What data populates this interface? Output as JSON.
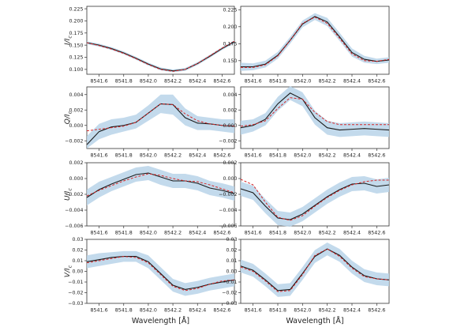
{
  "chart_data": [
    {
      "type": "line",
      "ylabel": "I/I",
      "ylabel_sub": "c",
      "xlabel": "",
      "xlim": [
        8541.5,
        8542.7
      ],
      "ylim": [
        0.09,
        0.23
      ],
      "yticks": [
        "0.100",
        "0.125",
        "0.150",
        "0.175",
        "0.200",
        "0.225"
      ],
      "xticks": [
        "8541.6",
        "8541.8",
        "8542.0",
        "8542.2",
        "8542.4",
        "8542.6"
      ],
      "x": [
        8541.5,
        8541.6,
        8541.7,
        8541.8,
        8541.9,
        8542.0,
        8542.1,
        8542.2,
        8542.3,
        8542.4,
        8542.5,
        8542.6,
        8542.7
      ],
      "series": [
        {
          "values": [
            0.155,
            0.15,
            0.143,
            0.134,
            0.123,
            0.111,
            0.101,
            0.097,
            0.1,
            0.112,
            0.127,
            0.143,
            0.157
          ]
        },
        {
          "values": [
            0.155,
            0.149,
            0.142,
            0.133,
            0.122,
            0.11,
            0.1,
            0.096,
            0.1,
            0.112,
            0.128,
            0.144,
            0.158
          ]
        }
      ],
      "band": {
        "lower": [
          0.152,
          0.147,
          0.14,
          0.131,
          0.12,
          0.108,
          0.098,
          0.094,
          0.097,
          0.109,
          0.124,
          0.14,
          0.154
        ],
        "upper": [
          0.158,
          0.153,
          0.146,
          0.137,
          0.126,
          0.114,
          0.104,
          0.1,
          0.103,
          0.115,
          0.13,
          0.146,
          0.16
        ]
      }
    },
    {
      "type": "line",
      "ylabel": "",
      "xlabel": "",
      "xlim": [
        8541.5,
        8542.7
      ],
      "ylim": [
        0.13,
        0.23
      ],
      "yticks": [
        "0.150",
        "0.175",
        "0.200",
        "0.225"
      ],
      "xticks": [
        "8541.6",
        "8541.8",
        "8542.0",
        "8542.2",
        "8542.4",
        "8542.6"
      ],
      "x": [
        8541.5,
        8541.6,
        8541.7,
        8541.8,
        8541.9,
        8542.0,
        8542.1,
        8542.2,
        8542.3,
        8542.4,
        8542.5,
        8542.6,
        8542.7
      ],
      "series": [
        {
          "values": [
            0.141,
            0.141,
            0.145,
            0.158,
            0.18,
            0.204,
            0.215,
            0.207,
            0.185,
            0.162,
            0.152,
            0.149,
            0.151
          ]
        },
        {
          "values": [
            0.14,
            0.14,
            0.144,
            0.157,
            0.18,
            0.205,
            0.214,
            0.205,
            0.183,
            0.16,
            0.15,
            0.149,
            0.152
          ]
        }
      ],
      "band": {
        "lower": [
          0.135,
          0.136,
          0.14,
          0.153,
          0.175,
          0.199,
          0.21,
          0.201,
          0.179,
          0.156,
          0.147,
          0.145,
          0.147
        ],
        "upper": [
          0.147,
          0.146,
          0.15,
          0.163,
          0.185,
          0.209,
          0.22,
          0.213,
          0.191,
          0.168,
          0.157,
          0.153,
          0.155
        ]
      }
    },
    {
      "type": "line",
      "ylabel": "Q/I",
      "ylabel_sub": "c",
      "xlabel": "",
      "xlim": [
        8541.5,
        8542.7
      ],
      "ylim": [
        -0.003,
        0.005
      ],
      "yticks": [
        "−0.002",
        "0.000",
        "0.002",
        "0.004"
      ],
      "xticks": [
        "8541.6",
        "8541.8",
        "8542.0",
        "8542.2",
        "8542.4",
        "8542.6"
      ],
      "x": [
        8541.5,
        8541.6,
        8541.7,
        8541.8,
        8541.9,
        8542.0,
        8542.1,
        8542.2,
        8542.3,
        8542.4,
        8542.5,
        8542.6,
        8542.7
      ],
      "series": [
        {
          "values": [
            -0.0025,
            -0.0008,
            -0.0002,
            0.0,
            0.0004,
            0.0016,
            0.0028,
            0.0027,
            0.001,
            0.0003,
            0.0002,
            0.0,
            -0.0001
          ]
        },
        {
          "values": [
            -0.0007,
            -0.0005,
            -0.0003,
            -0.0001,
            0.0004,
            0.0016,
            0.0028,
            0.0027,
            0.0015,
            0.0006,
            0.0002,
            0.0,
            -0.0001
          ]
        }
      ],
      "band": {
        "lower": [
          -0.003,
          -0.0018,
          -0.0012,
          -0.0008,
          -0.0004,
          0.0006,
          0.0016,
          0.0014,
          0.0,
          -0.0006,
          -0.0006,
          -0.0008,
          -0.001
        ],
        "upper": [
          -0.0014,
          0.0002,
          0.0008,
          0.001,
          0.0014,
          0.0026,
          0.004,
          0.004,
          0.0022,
          0.0012,
          0.001,
          0.0008,
          0.0008
        ]
      }
    },
    {
      "type": "line",
      "ylabel": "",
      "xlabel": "",
      "xlim": [
        8541.5,
        8542.7
      ],
      "ylim": [
        -0.003,
        0.005
      ],
      "yticks": [
        "−0.002",
        "0.000",
        "0.002",
        "0.004"
      ],
      "xticks": [
        "8541.6",
        "8541.8",
        "8542.0",
        "8542.2",
        "8542.4",
        "8542.6"
      ],
      "x": [
        8541.5,
        8541.6,
        8541.7,
        8541.8,
        8541.9,
        8542.0,
        8542.1,
        8542.2,
        8542.3,
        8542.4,
        8542.5,
        8542.6,
        8542.7
      ],
      "series": [
        {
          "values": [
            -0.0003,
            0.0,
            0.0008,
            0.0028,
            0.0042,
            0.0034,
            0.001,
            -0.0003,
            -0.0006,
            -0.0005,
            -0.0004,
            -0.0005,
            -0.0006
          ]
        },
        {
          "values": [
            -0.0001,
            0.0001,
            0.0006,
            0.0022,
            0.0036,
            0.0034,
            0.0017,
            0.0005,
            0.0001,
            0.0001,
            0.0001,
            0.0001,
            0.0001
          ]
        }
      ],
      "band": {
        "lower": [
          -0.0012,
          -0.0008,
          0.0,
          0.0019,
          0.0033,
          0.0025,
          0.0001,
          -0.0012,
          -0.0015,
          -0.0014,
          -0.0013,
          -0.0014,
          -0.0015
        ],
        "upper": [
          0.0006,
          0.0008,
          0.0016,
          0.0037,
          0.0051,
          0.0043,
          0.0019,
          0.0006,
          0.0003,
          0.0004,
          0.0005,
          0.0004,
          0.0003
        ]
      }
    },
    {
      "type": "line",
      "ylabel": "U/I",
      "ylabel_sub": "c",
      "xlabel": "",
      "xlim": [
        8541.5,
        8542.7
      ],
      "ylim": [
        -0.006,
        0.002
      ],
      "yticks": [
        "−0.006",
        "−0.004",
        "−0.002",
        "0.000",
        "0.002"
      ],
      "xticks": [
        "8541.6",
        "8541.8",
        "8542.0",
        "8542.2",
        "8542.4",
        "8542.6"
      ],
      "x": [
        8541.5,
        8541.6,
        8541.7,
        8541.8,
        8541.9,
        8542.0,
        8542.1,
        8542.2,
        8542.3,
        8542.4,
        8542.5,
        8542.6,
        8542.7
      ],
      "series": [
        {
          "values": [
            -0.0024,
            -0.0014,
            -0.0007,
            -0.0001,
            0.0005,
            0.0007,
            0.0002,
            -0.0003,
            -0.0003,
            -0.0006,
            -0.0012,
            -0.0015,
            -0.0019
          ]
        },
        {
          "values": [
            -0.0022,
            -0.0015,
            -0.0009,
            -0.0003,
            0.0002,
            0.0006,
            0.0004,
            0.0,
            -0.0003,
            -0.0004,
            -0.0008,
            -0.0013,
            -0.0018
          ]
        }
      ],
      "band": {
        "lower": [
          -0.0034,
          -0.0024,
          -0.0016,
          -0.001,
          -0.0004,
          -0.0002,
          -0.0008,
          -0.0012,
          -0.0012,
          -0.0015,
          -0.0021,
          -0.0024,
          -0.0028
        ],
        "upper": [
          -0.0014,
          -0.0004,
          0.0002,
          0.0008,
          0.0014,
          0.0016,
          0.0011,
          0.0006,
          0.0006,
          0.0003,
          -0.0003,
          -0.0006,
          -0.001
        ]
      }
    },
    {
      "type": "line",
      "ylabel": "",
      "xlabel": "",
      "xlim": [
        8541.5,
        8542.7
      ],
      "ylim": [
        -0.006,
        0.002
      ],
      "yticks": [
        "−0.006",
        "−0.004",
        "−0.002",
        "0.000",
        "0.002"
      ],
      "xticks": [
        "8541.6",
        "8541.8",
        "8542.0",
        "8542.2",
        "8542.4",
        "8542.6"
      ],
      "x": [
        8541.5,
        8541.6,
        8541.7,
        8541.8,
        8541.9,
        8542.0,
        8542.1,
        8542.2,
        8542.3,
        8542.4,
        8542.5,
        8542.6,
        8542.7
      ],
      "series": [
        {
          "values": [
            -0.0013,
            -0.0018,
            -0.0035,
            -0.005,
            -0.0052,
            -0.0045,
            -0.0034,
            -0.0023,
            -0.0014,
            -0.0007,
            -0.0006,
            -0.001,
            -0.0008
          ]
        },
        {
          "values": [
            -0.0001,
            -0.0008,
            -0.003,
            -0.0049,
            -0.0053,
            -0.0047,
            -0.0035,
            -0.0024,
            -0.0015,
            -0.0008,
            -0.0004,
            -0.0002,
            -0.0002
          ]
        }
      ],
      "band": {
        "lower": [
          -0.0022,
          -0.0027,
          -0.0044,
          -0.0059,
          -0.0061,
          -0.0054,
          -0.0043,
          -0.0032,
          -0.0023,
          -0.0016,
          -0.0015,
          -0.0019,
          -0.0017
        ],
        "upper": [
          -0.0004,
          -0.0009,
          -0.0026,
          -0.0041,
          -0.0043,
          -0.0036,
          -0.0025,
          -0.0014,
          -0.0005,
          0.0002,
          0.0003,
          -0.0001,
          0.0001
        ]
      }
    },
    {
      "type": "line",
      "ylabel": "V/I",
      "ylabel_sub": "c",
      "xlabel": "Wavelength [Å]",
      "xlim": [
        8541.5,
        8542.7
      ],
      "ylim": [
        -0.03,
        0.03
      ],
      "yticks": [
        "−0.03",
        "−0.02",
        "−0.01",
        "0.00",
        "0.01",
        "0.02",
        "0.03"
      ],
      "xticks": [
        "8541.6",
        "8541.8",
        "8542.0",
        "8542.2",
        "8542.4",
        "8542.6"
      ],
      "x": [
        8541.5,
        8541.6,
        8541.7,
        8541.8,
        8541.9,
        8542.0,
        8542.1,
        8542.2,
        8542.3,
        8542.4,
        8542.5,
        8542.6,
        8542.7
      ],
      "series": [
        {
          "values": [
            0.009,
            0.011,
            0.013,
            0.014,
            0.014,
            0.009,
            -0.002,
            -0.013,
            -0.017,
            -0.015,
            -0.012,
            -0.01,
            -0.008
          ]
        },
        {
          "values": [
            0.008,
            0.01,
            0.012,
            0.014,
            0.013,
            0.008,
            -0.003,
            -0.014,
            -0.018,
            -0.016,
            -0.012,
            -0.009,
            -0.008
          ]
        }
      ],
      "band": {
        "lower": [
          0.003,
          0.005,
          0.007,
          0.009,
          0.009,
          0.003,
          -0.008,
          -0.019,
          -0.023,
          -0.021,
          -0.018,
          -0.016,
          -0.014
        ],
        "upper": [
          0.015,
          0.017,
          0.018,
          0.019,
          0.019,
          0.015,
          0.004,
          -0.007,
          -0.011,
          -0.009,
          -0.006,
          -0.004,
          -0.002
        ]
      }
    },
    {
      "type": "line",
      "ylabel": "",
      "xlabel": "Wavelength [Å]",
      "xlim": [
        8541.5,
        8542.7
      ],
      "ylim": [
        -0.03,
        0.03
      ],
      "yticks": [
        "−0.03",
        "−0.02",
        "−0.01",
        "0.00",
        "0.01",
        "0.02",
        "0.03"
      ],
      "xticks": [
        "8541.6",
        "8541.8",
        "8542.0",
        "8542.2",
        "8542.4",
        "8542.6"
      ],
      "x": [
        8541.5,
        8541.6,
        8541.7,
        8541.8,
        8541.9,
        8542.0,
        8542.1,
        8542.2,
        8542.3,
        8542.4,
        8542.5,
        8542.6,
        8542.7
      ],
      "series": [
        {
          "values": [
            0.005,
            0.001,
            -0.008,
            -0.018,
            -0.017,
            -0.002,
            0.014,
            0.021,
            0.015,
            0.004,
            -0.004,
            -0.007,
            -0.008
          ]
        },
        {
          "values": [
            0.004,
            0.0,
            -0.009,
            -0.019,
            -0.018,
            -0.003,
            0.015,
            0.021,
            0.014,
            0.003,
            -0.005,
            -0.007,
            -0.008
          ]
        }
      ],
      "band": {
        "lower": [
          -0.001,
          -0.005,
          -0.014,
          -0.024,
          -0.023,
          -0.008,
          0.008,
          0.015,
          0.009,
          -0.002,
          -0.01,
          -0.013,
          -0.014
        ],
        "upper": [
          0.011,
          0.007,
          -0.002,
          -0.012,
          -0.011,
          0.004,
          0.02,
          0.027,
          0.021,
          0.01,
          0.002,
          -0.001,
          -0.002
        ]
      }
    }
  ],
  "colors": {
    "observed": "#1a1a1a",
    "fit": "#d62728",
    "band": "#b9d3e9"
  }
}
